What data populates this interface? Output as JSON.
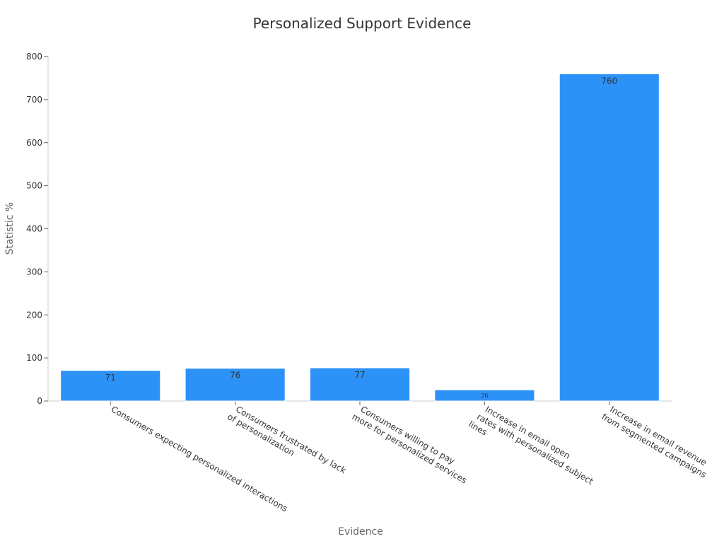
{
  "chart_data": {
    "type": "bar",
    "title": "Personalized Support Evidence",
    "xlabel": "Evidence",
    "ylabel": "Statistic %",
    "categories": [
      [
        "Consumers expecting personalized interactions"
      ],
      [
        "Consumers frustrated by lack",
        "of personalization"
      ],
      [
        "Consumers willing to pay",
        "more for personalized services"
      ],
      [
        "Increase in email open",
        "rates with personalized subject",
        "lines"
      ],
      [
        "Increase in email revenue",
        "from segmented campaigns"
      ]
    ],
    "values": [
      71,
      76,
      77,
      26,
      760
    ],
    "data_labels": [
      "71",
      "76",
      "77",
      "26",
      "760"
    ],
    "ylim": [
      0,
      800
    ],
    "yticks": [
      0,
      100,
      200,
      300,
      400,
      500,
      600,
      700,
      800
    ],
    "grid": false,
    "legend": "none",
    "colors": {
      "bar": "#2d92f8",
      "title": "#333333",
      "axis_title": "#666666",
      "tick_text": "#333333"
    }
  }
}
